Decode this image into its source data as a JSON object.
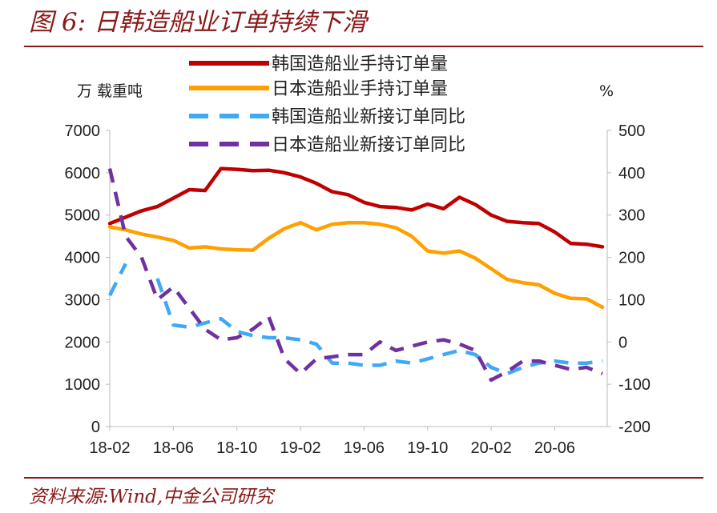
{
  "header": {
    "title": "图 6:  日韩造船业订单持续下滑"
  },
  "footer": {
    "source": "资料来源:Wind,中金公司研究"
  },
  "colors": {
    "korea_backlog": "#C00000",
    "japan_backlog": "#FFA000",
    "korea_yoy": "#3FA9F5",
    "japan_yoy": "#7030A0",
    "title": "#8B1A1A",
    "axis": "#BBBBBB"
  },
  "chart_data": {
    "type": "line",
    "left_axis": {
      "unit": "万 载重吨",
      "ylim": [
        0,
        7000
      ],
      "ticks": [
        "0",
        "1000",
        "2000",
        "3000",
        "4000",
        "5000",
        "6000",
        "7000"
      ]
    },
    "right_axis": {
      "unit": "%",
      "ylim": [
        -200,
        500
      ],
      "ticks": [
        "-200",
        "-100",
        "0",
        "100",
        "200",
        "300",
        "400",
        "500"
      ]
    },
    "x_tick_labels": [
      "18-02",
      "18-06",
      "18-10",
      "19-02",
      "19-06",
      "19-10",
      "20-02",
      "20-06"
    ],
    "x": [
      "18-02",
      "18-03",
      "18-04",
      "18-05",
      "18-06",
      "18-07",
      "18-08",
      "18-09",
      "18-10",
      "18-11",
      "18-12",
      "19-01",
      "19-02",
      "19-03",
      "19-04",
      "19-05",
      "19-06",
      "19-07",
      "19-08",
      "19-09",
      "19-10",
      "19-11",
      "19-12",
      "20-01",
      "20-02",
      "20-03",
      "20-04",
      "20-05",
      "20-06",
      "20-07",
      "20-08",
      "20-09"
    ],
    "series": [
      {
        "name": "韩国造船业手持订单量",
        "axis": "left",
        "style": "solid",
        "values": [
          4800,
          4950,
          5100,
          5200,
          5400,
          5600,
          5580,
          6100,
          6080,
          6050,
          6060,
          6000,
          5900,
          5750,
          5550,
          5480,
          5300,
          5200,
          5180,
          5120,
          5260,
          5150,
          5420,
          5250,
          5000,
          4850,
          4820,
          4800,
          4600,
          4330,
          4310,
          4250
        ]
      },
      {
        "name": "日本造船业手持订单量",
        "axis": "left",
        "style": "solid",
        "values": [
          4720,
          4650,
          4550,
          4480,
          4400,
          4220,
          4250,
          4200,
          4180,
          4170,
          4450,
          4680,
          4820,
          4650,
          4780,
          4820,
          4820,
          4780,
          4700,
          4500,
          4150,
          4100,
          4150,
          3980,
          3730,
          3480,
          3400,
          3350,
          3150,
          3030,
          3020,
          2820
        ]
      },
      {
        "name": "韩国造船业新接订单同比",
        "axis": "right",
        "style": "dashed",
        "values": [
          110,
          185,
          null,
          150,
          40,
          35,
          45,
          55,
          25,
          15,
          10,
          10,
          5,
          -5,
          -50,
          -50,
          -55,
          -55,
          -45,
          -50,
          -40,
          -30,
          -20,
          -30,
          -60,
          -75,
          -60,
          -50,
          -45,
          -50,
          -50,
          -45
        ]
      },
      {
        "name": "日本造船业新接订单同比",
        "axis": "right",
        "style": "dashed",
        "values": [
          410,
          250,
          200,
          100,
          130,
          80,
          30,
          5,
          10,
          30,
          60,
          -40,
          -75,
          -40,
          -35,
          -30,
          -30,
          0,
          -20,
          -10,
          0,
          5,
          -5,
          -20,
          -90,
          -70,
          -45,
          -45,
          -55,
          -65,
          -60,
          -75
        ]
      }
    ]
  }
}
